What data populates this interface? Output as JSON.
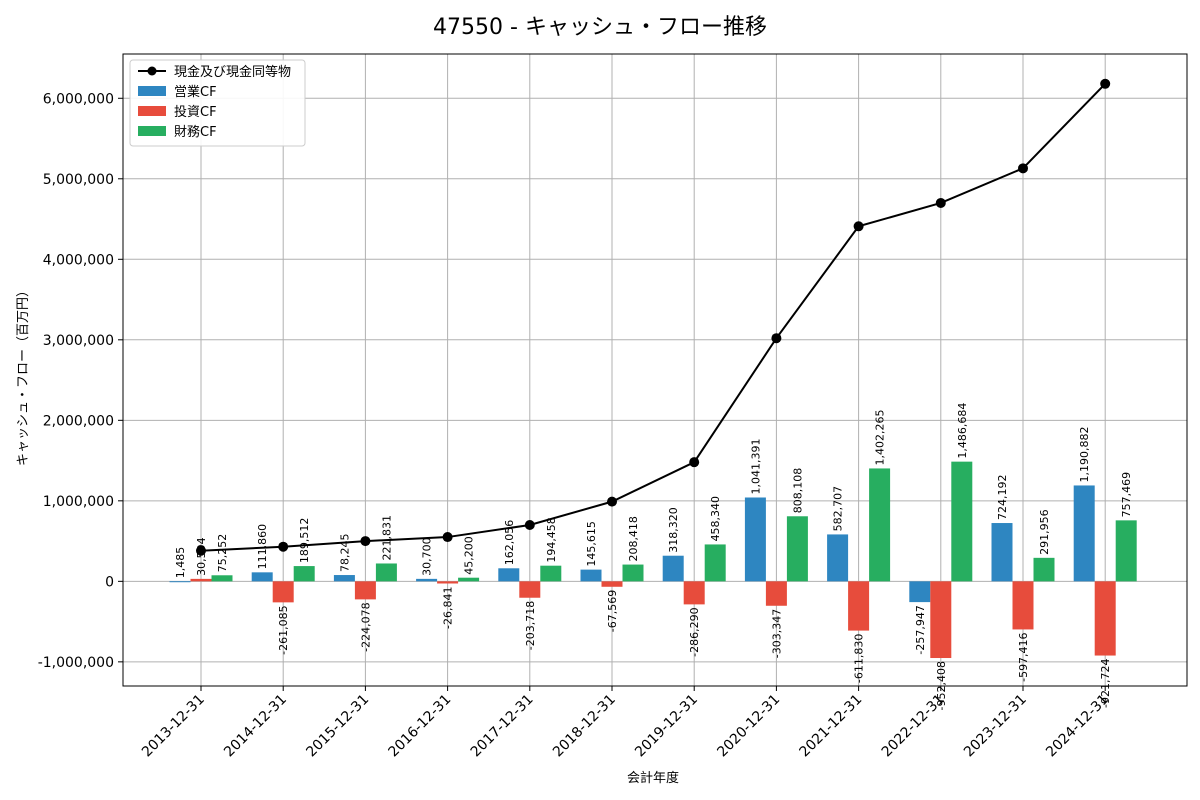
{
  "chart_data": {
    "type": "bar",
    "title": "47550 - キャッシュ・フロー推移",
    "xlabel": "会計年度",
    "ylabel": "キャッシュ・フロー（百万円）",
    "ylim": [
      -1300000,
      6550000
    ],
    "yticks": [
      -1000000,
      0,
      1000000,
      2000000,
      3000000,
      4000000,
      5000000,
      6000000
    ],
    "ytick_labels": [
      "-1,000,000",
      "0",
      "1,000,000",
      "2,000,000",
      "3,000,000",
      "4,000,000",
      "5,000,000",
      "6,000,000"
    ],
    "grid": true,
    "legend_position": "top-left",
    "categories": [
      "2013-12-31",
      "2014-12-31",
      "2015-12-31",
      "2016-12-31",
      "2017-12-31",
      "2018-12-31",
      "2019-12-31",
      "2020-12-31",
      "2021-12-31",
      "2022-12-31",
      "2023-12-31",
      "2024-12-31"
    ],
    "series": [
      {
        "name": "営業CF",
        "type": "bar",
        "color": "#2e86c1",
        "values": [
          1485,
          111860,
          78245,
          30700,
          162056,
          145615,
          318320,
          1041391,
          582707,
          -257947,
          724192,
          1190882
        ],
        "labels": [
          "1,485",
          "111,860",
          "78,245",
          "30,700",
          "162,056",
          "145,615",
          "318,320",
          "1,041,391",
          "582,707",
          "-257,947",
          "724,192",
          "1,190,882"
        ]
      },
      {
        "name": "投資CF",
        "type": "bar",
        "color": "#e74c3c",
        "values": [
          30594,
          -261085,
          -224078,
          -26841,
          -203718,
          -67569,
          -286290,
          -303347,
          -611830,
          -952408,
          -597416,
          -921724
        ],
        "labels": [
          "30,594",
          "-261,085",
          "-224,078",
          "-26,841",
          "-203,718",
          "-67,569",
          "-286,290",
          "-303,347",
          "-611,830",
          "-952,408",
          "-597,416",
          "-921,724"
        ]
      },
      {
        "name": "財務CF",
        "type": "bar",
        "color": "#27ae60",
        "values": [
          75252,
          189512,
          221831,
          45200,
          194458,
          208418,
          458340,
          808108,
          1402265,
          1486684,
          291956,
          757469
        ],
        "labels": [
          "75,252",
          "189,512",
          "221,831",
          "45,200",
          "194,458",
          "208,418",
          "458,340",
          "808,108",
          "1,402,265",
          "1,486,684",
          "291,956",
          "757,469"
        ]
      },
      {
        "name": "現金及び現金同等物",
        "type": "line",
        "color": "#000000",
        "values": [
          380000,
          430000,
          500000,
          550000,
          700000,
          990000,
          1480000,
          3020000,
          4410000,
          4700000,
          5130000,
          6180000
        ]
      }
    ]
  }
}
